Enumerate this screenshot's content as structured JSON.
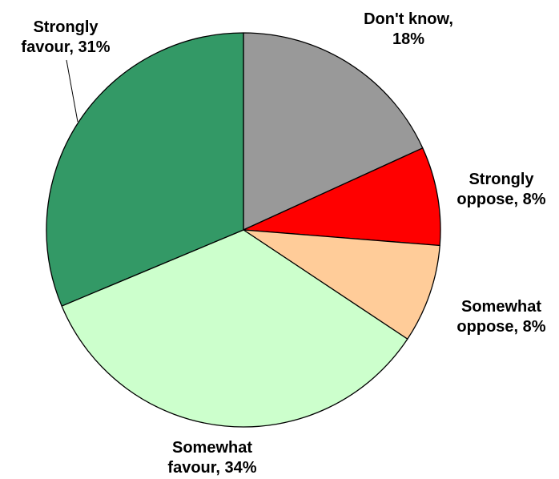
{
  "chart_data": {
    "type": "pie",
    "title": "",
    "start_angle_deg": 0,
    "direction": "clockwise",
    "slices": [
      {
        "label_lines": [
          "Don't know,",
          "18%"
        ],
        "value": 18,
        "color": "#999999"
      },
      {
        "label_lines": [
          "Strongly",
          "oppose, 8%"
        ],
        "value": 8,
        "color": "#ff0000"
      },
      {
        "label_lines": [
          "Somewhat",
          "oppose, 8%"
        ],
        "value": 8,
        "color": "#ffcc99"
      },
      {
        "label_lines": [
          "Somewhat",
          "favour, 34%"
        ],
        "value": 34,
        "color": "#ccffcc"
      },
      {
        "label_lines": [
          "Strongly",
          "favour, 31%"
        ],
        "value": 31,
        "color": "#339966"
      }
    ]
  }
}
